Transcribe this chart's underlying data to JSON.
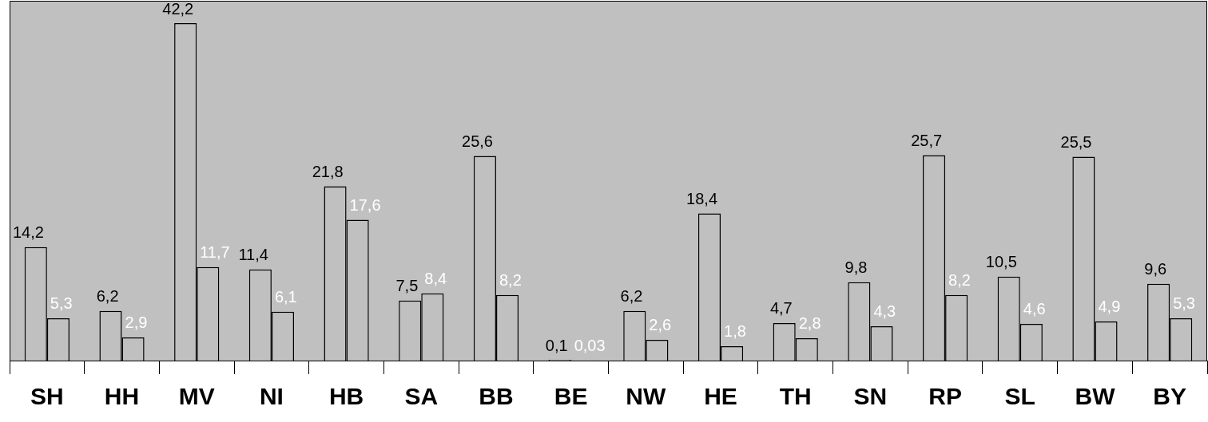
{
  "chart_data": {
    "type": "bar",
    "categories": [
      "SH",
      "HH",
      "MV",
      "NI",
      "HB",
      "SA",
      "BB",
      "BE",
      "NW",
      "HE",
      "TH",
      "SN",
      "RP",
      "SL",
      "BW",
      "BY"
    ],
    "series": [
      {
        "color": "#c0c0c0",
        "values": [
          14.2,
          6.2,
          42.2,
          11.4,
          21.8,
          7.5,
          25.6,
          0.1,
          6.2,
          18.4,
          4.7,
          9.8,
          25.7,
          10.5,
          25.5,
          9.6
        ],
        "value_labels": [
          "14,2",
          "6,2",
          "42,2",
          "11,4",
          "21,8",
          "7,5",
          "25,6",
          "0,1",
          "6,2",
          "18,4",
          "4,7",
          "9,8",
          "25,7",
          "10,5",
          "25,5",
          "9,6"
        ]
      },
      {
        "color": "#c0c0c0",
        "values": [
          5.3,
          2.9,
          11.7,
          6.1,
          17.6,
          8.4,
          8.2,
          0.03,
          2.6,
          1.8,
          2.8,
          4.3,
          8.2,
          4.6,
          4.9,
          5.3
        ],
        "value_labels": [
          "5,3",
          "2,9",
          "11,7",
          "6,1",
          "17,6",
          "8,4",
          "8,2",
          "0,03",
          "2,6",
          "1,8",
          "2,8",
          "4,3",
          "8,2",
          "4,6",
          "4,9",
          "5,3"
        ]
      }
    ],
    "grid": false,
    "legend": false
  }
}
